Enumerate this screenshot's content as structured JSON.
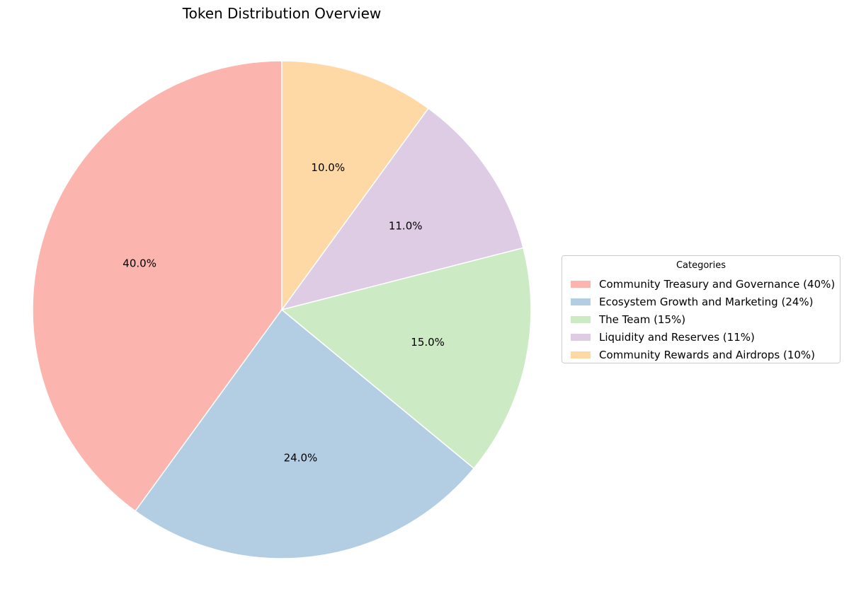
{
  "chart_data": {
    "type": "pie",
    "title": "Token Distribution Overview",
    "legend_title": "Categories",
    "legend_placement": "right",
    "start_angle_deg": 90,
    "direction": "counterclockwise",
    "slices": [
      {
        "label": "Community Treasury and Governance",
        "legend": "Community Treasury and Governance (40%)",
        "value": 40,
        "pct_label": "40.0%",
        "color": "#fbb4ae"
      },
      {
        "label": "Ecosystem Growth and Marketing",
        "legend": "Ecosystem Growth and Marketing (24%)",
        "value": 24,
        "pct_label": "24.0%",
        "color": "#b3cde3"
      },
      {
        "label": "The Team",
        "legend": "The Team (15%)",
        "value": 15,
        "pct_label": "15.0%",
        "color": "#ccebc5"
      },
      {
        "label": "Liquidity and Reserves",
        "legend": "Liquidity and Reserves (11%)",
        "value": 11,
        "pct_label": "11.0%",
        "color": "#decbe4"
      },
      {
        "label": "Community Rewards and Airdrops",
        "legend": "Community Rewards and Airdrops (10%)",
        "value": 10,
        "pct_label": "10.0%",
        "color": "#fed9a6"
      }
    ]
  }
}
